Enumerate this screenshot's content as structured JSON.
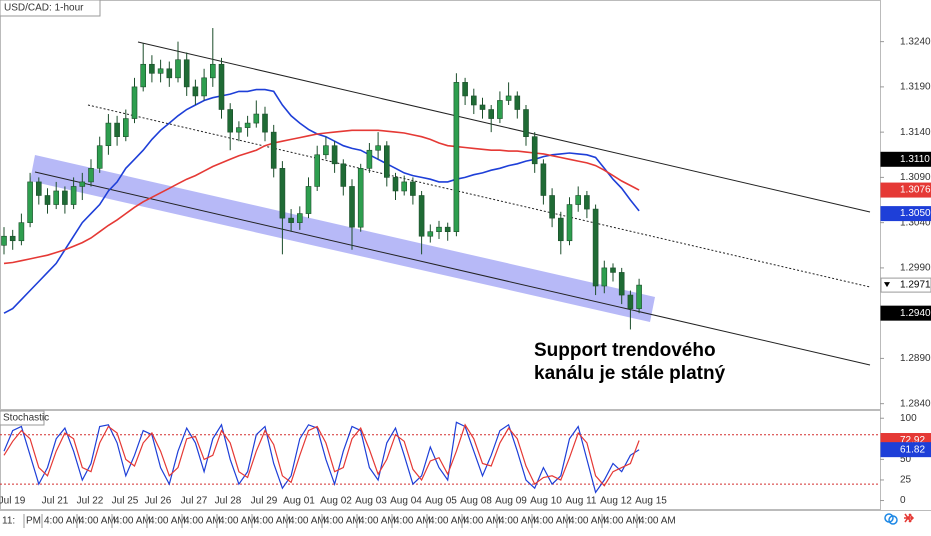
{
  "chart_data": [
    {
      "type": "candlestick",
      "title": "USD/CAD: 1-hour",
      "up_color": "#2e9e4f",
      "down_color": "#1f6b35",
      "ylim": [
        1.2833,
        1.3286
      ],
      "yticks": [
        {
          "value": 1.324,
          "label": "1.3240"
        },
        {
          "value": 1.319,
          "label": "1.3190"
        },
        {
          "value": 1.314,
          "label": "1.3140"
        },
        {
          "value": 1.309,
          "label": "1.3090"
        },
        {
          "value": 1.304,
          "label": "1.3040"
        },
        {
          "value": 1.299,
          "label": "1.2990"
        },
        {
          "value": 1.289,
          "label": "1.2890"
        },
        {
          "value": 1.284,
          "label": "1.2840"
        }
      ],
      "price_labels": [
        {
          "value": 1.311,
          "label": "1.3110",
          "color": "#000000"
        },
        {
          "value": 1.3076,
          "label": "1.3076",
          "color": "#e53935"
        },
        {
          "value": 1.305,
          "label": "1.3050",
          "color": "#1e3fd8"
        },
        {
          "value": 1.2971,
          "label": "1.2971",
          "color": "#ffffff"
        },
        {
          "value": 1.294,
          "label": "1.2940",
          "color": "#000000"
        }
      ],
      "annotation": [
        "Support trendového",
        "kanálu je stále platný"
      ],
      "x_labels": [
        "Jul 19",
        "Jul 21",
        "Jul 22",
        "Jul 25",
        "Jul 26",
        "Jul 27",
        "Jul 28",
        "Jul 29",
        "Aug 01",
        "Aug 02",
        "Aug 03",
        "Aug 04",
        "Aug 05",
        "Aug 08",
        "Aug 09",
        "Aug 10",
        "Aug 11",
        "Aug 12",
        "Aug 15"
      ],
      "candles": [
        [
          1.3015,
          1.3035,
          1.3005,
          1.3025
        ],
        [
          1.3025,
          1.3032,
          1.301,
          1.302
        ],
        [
          1.302,
          1.305,
          1.3015,
          1.304
        ],
        [
          1.304,
          1.3095,
          1.3035,
          1.3085
        ],
        [
          1.3085,
          1.309,
          1.306,
          1.307
        ],
        [
          1.307,
          1.3078,
          1.305,
          1.306
        ],
        [
          1.306,
          1.3085,
          1.3055,
          1.3075
        ],
        [
          1.3075,
          1.308,
          1.305,
          1.306
        ],
        [
          1.306,
          1.309,
          1.3055,
          1.308
        ],
        [
          1.308,
          1.3095,
          1.3065,
          1.3085
        ],
        [
          1.3085,
          1.311,
          1.308,
          1.31
        ],
        [
          1.31,
          1.3135,
          1.3095,
          1.3125
        ],
        [
          1.3125,
          1.316,
          1.3115,
          1.315
        ],
        [
          1.315,
          1.3158,
          1.3125,
          1.3135
        ],
        [
          1.3135,
          1.3165,
          1.313,
          1.3155
        ],
        [
          1.3155,
          1.32,
          1.315,
          1.319
        ],
        [
          1.319,
          1.3238,
          1.3185,
          1.3215
        ],
        [
          1.3215,
          1.3225,
          1.3195,
          1.3205
        ],
        [
          1.3205,
          1.322,
          1.3195,
          1.321
        ],
        [
          1.321,
          1.3218,
          1.319,
          1.32
        ],
        [
          1.32,
          1.324,
          1.3195,
          1.322
        ],
        [
          1.322,
          1.3228,
          1.318,
          1.319
        ],
        [
          1.319,
          1.3198,
          1.317,
          1.318
        ],
        [
          1.318,
          1.321,
          1.3175,
          1.32
        ],
        [
          1.32,
          1.3255,
          1.319,
          1.3215
        ],
        [
          1.3215,
          1.3222,
          1.3155,
          1.3165
        ],
        [
          1.3165,
          1.3172,
          1.312,
          1.314
        ],
        [
          1.314,
          1.3152,
          1.313,
          1.3145
        ],
        [
          1.3145,
          1.3158,
          1.3135,
          1.315
        ],
        [
          1.315,
          1.3175,
          1.3145,
          1.316
        ],
        [
          1.316,
          1.3168,
          1.313,
          1.314
        ],
        [
          1.314,
          1.3148,
          1.309,
          1.31
        ],
        [
          1.31,
          1.3108,
          1.3005,
          1.3045
        ],
        [
          1.3045,
          1.3055,
          1.303,
          1.304
        ],
        [
          1.304,
          1.3058,
          1.3032,
          1.305
        ],
        [
          1.305,
          1.309,
          1.3045,
          1.308
        ],
        [
          1.308,
          1.3125,
          1.3075,
          1.3115
        ],
        [
          1.3115,
          1.3135,
          1.311,
          1.3125
        ],
        [
          1.3125,
          1.313,
          1.3095,
          1.3105
        ],
        [
          1.3105,
          1.311,
          1.307,
          1.308
        ],
        [
          1.308,
          1.3088,
          1.301,
          1.3035
        ],
        [
          1.3035,
          1.3105,
          1.303,
          1.31
        ],
        [
          1.31,
          1.3128,
          1.3095,
          1.312
        ],
        [
          1.312,
          1.314,
          1.311,
          1.3125
        ],
        [
          1.3125,
          1.313,
          1.308,
          1.309
        ],
        [
          1.309,
          1.3095,
          1.3065,
          1.3075
        ],
        [
          1.3075,
          1.3092,
          1.307,
          1.3085
        ],
        [
          1.3085,
          1.309,
          1.306,
          1.307
        ],
        [
          1.307,
          1.3075,
          1.3005,
          1.3025
        ],
        [
          1.3025,
          1.3038,
          1.3018,
          1.303
        ],
        [
          1.303,
          1.3042,
          1.3022,
          1.3035
        ],
        [
          1.3035,
          1.304,
          1.302,
          1.303
        ],
        [
          1.303,
          1.3205,
          1.3025,
          1.3195
        ],
        [
          1.3195,
          1.32,
          1.317,
          1.318
        ],
        [
          1.318,
          1.3188,
          1.316,
          1.317
        ],
        [
          1.317,
          1.3178,
          1.3155,
          1.3165
        ],
        [
          1.3165,
          1.317,
          1.314,
          1.3155
        ],
        [
          1.3155,
          1.3185,
          1.315,
          1.3175
        ],
        [
          1.3175,
          1.3195,
          1.317,
          1.318
        ],
        [
          1.318,
          1.3185,
          1.3155,
          1.3165
        ],
        [
          1.3165,
          1.317,
          1.3125,
          1.3135
        ],
        [
          1.3135,
          1.314,
          1.3095,
          1.3105
        ],
        [
          1.3105,
          1.311,
          1.306,
          1.307
        ],
        [
          1.307,
          1.3078,
          1.3035,
          1.3045
        ],
        [
          1.3045,
          1.3052,
          1.3005,
          1.302
        ],
        [
          1.302,
          1.3068,
          1.3015,
          1.306
        ],
        [
          1.306,
          1.308,
          1.3052,
          1.307
        ],
        [
          1.307,
          1.3075,
          1.3045,
          1.3055
        ],
        [
          1.3055,
          1.306,
          1.296,
          1.297
        ],
        [
          1.297,
          1.2998,
          1.2962,
          1.299
        ],
        [
          1.299,
          1.2995,
          1.2975,
          1.2985
        ],
        [
          1.2985,
          1.299,
          1.295,
          1.296
        ],
        [
          1.296,
          1.2965,
          1.2922,
          1.2945
        ],
        [
          1.2945,
          1.2978,
          1.294,
          1.2971
        ]
      ],
      "series": [
        {
          "color": "#1e3fd8",
          "values": [
            1.294,
            1.2945,
            1.2955,
            1.2965,
            1.2975,
            1.2985,
            1.2995,
            1.301,
            1.3025,
            1.304,
            1.305,
            1.306,
            1.3075,
            1.3085,
            1.31,
            1.311,
            1.312,
            1.3132,
            1.3142,
            1.315,
            1.3158,
            1.3165,
            1.317,
            1.3175,
            1.3178,
            1.318,
            1.3182,
            1.3185,
            1.3185,
            1.3187,
            1.3187,
            1.3185,
            1.317,
            1.3158,
            1.315,
            1.3143,
            1.3138,
            1.3135,
            1.313,
            1.3125,
            1.3122,
            1.312,
            1.3115,
            1.311,
            1.3105,
            1.31,
            1.3095,
            1.3092,
            1.309,
            1.3088,
            1.3085,
            1.3085,
            1.3088,
            1.309,
            1.3093,
            1.3095,
            1.3098,
            1.31,
            1.3103,
            1.3105,
            1.3108,
            1.311,
            1.3113,
            1.3115,
            1.3116,
            1.3117,
            1.3116,
            1.3115,
            1.3112,
            1.31,
            1.3088,
            1.3078,
            1.3065,
            1.3053
          ]
        },
        {
          "color": "#e53935",
          "values": [
            1.2995,
            1.2996,
            1.2998,
            1.3,
            1.3002,
            1.3004,
            1.3007,
            1.301,
            1.3014,
            1.3018,
            1.3023,
            1.303,
            1.3037,
            1.3043,
            1.305,
            1.3057,
            1.3063,
            1.3068,
            1.3073,
            1.3078,
            1.3083,
            1.3088,
            1.3092,
            1.3097,
            1.3102,
            1.3106,
            1.311,
            1.3114,
            1.3117,
            1.312,
            1.3125,
            1.3128,
            1.313,
            1.3132,
            1.3134,
            1.3136,
            1.3138,
            1.3139,
            1.314,
            1.3141,
            1.3142,
            1.3142,
            1.3142,
            1.3142,
            1.3141,
            1.314,
            1.3139,
            1.3137,
            1.3135,
            1.3132,
            1.3128,
            1.3125,
            1.3124,
            1.3123,
            1.3122,
            1.3121,
            1.312,
            1.312,
            1.3119,
            1.3119,
            1.3118,
            1.3117,
            1.3116,
            1.3114,
            1.3112,
            1.311,
            1.3108,
            1.3106,
            1.3103,
            1.3098,
            1.3092,
            1.3086,
            1.3081,
            1.3076
          ]
        }
      ]
    },
    {
      "type": "line",
      "title": "Stochastic",
      "ylim": [
        -11.5,
        110
      ],
      "yticks": [
        0,
        25,
        50,
        100
      ],
      "levels": [
        80,
        20
      ],
      "level_color": "#d32f2f",
      "value_labels": [
        {
          "value": 72.92,
          "label": "72.92",
          "color": "#e53935"
        },
        {
          "value": 61.82,
          "label": "61.82",
          "color": "#1e3fd8"
        }
      ],
      "series": [
        {
          "color": "#1e3fd8",
          "values": [
            60,
            85,
            90,
            55,
            20,
            40,
            75,
            88,
            60,
            25,
            45,
            90,
            92,
            70,
            30,
            55,
            85,
            80,
            40,
            20,
            60,
            88,
            70,
            35,
            75,
            92,
            50,
            20,
            35,
            80,
            90,
            45,
            15,
            30,
            75,
            92,
            88,
            50,
            20,
            60,
            90,
            85,
            40,
            25,
            70,
            88,
            55,
            20,
            30,
            65,
            40,
            25,
            95,
            90,
            60,
            30,
            55,
            85,
            92,
            60,
            25,
            15,
            40,
            20,
            30,
            75,
            90,
            50,
            10,
            25,
            45,
            35,
            55,
            61.82
          ]
        },
        {
          "color": "#e53935",
          "values": [
            55,
            72,
            85,
            75,
            40,
            30,
            60,
            82,
            75,
            40,
            35,
            70,
            90,
            82,
            50,
            42,
            70,
            82,
            60,
            30,
            40,
            75,
            78,
            50,
            55,
            85,
            70,
            35,
            28,
            60,
            85,
            68,
            30,
            22,
            55,
            85,
            90,
            70,
            35,
            40,
            75,
            88,
            62,
            32,
            50,
            80,
            72,
            38,
            25,
            48,
            52,
            32,
            60,
            92,
            75,
            45,
            42,
            70,
            88,
            75,
            42,
            20,
            28,
            30,
            25,
            52,
            82,
            70,
            30,
            18,
            35,
            40,
            45,
            72.92
          ]
        }
      ]
    }
  ],
  "time_labels": [
    "11:",
    "PM",
    "4:00 AM",
    "4:00 AM",
    "4:00 AM",
    "4:00 AM",
    "4:00 AM",
    "4:00 AM",
    "4:00 AM",
    "4:00 AM",
    "4:00 AM",
    "4:00 AM",
    "4:00 AM",
    "4:00 AM",
    "4:00 AM",
    "4:00 AM",
    "4:00 AM",
    "4:00 AM",
    "4:00 AM",
    "4:00 AM"
  ]
}
